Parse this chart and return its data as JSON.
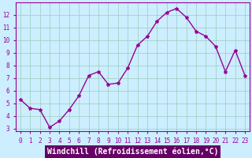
{
  "x": [
    0,
    1,
    2,
    3,
    4,
    5,
    6,
    7,
    8,
    9,
    10,
    11,
    12,
    13,
    14,
    15,
    16,
    17,
    18,
    19,
    20,
    21,
    22,
    23
  ],
  "y": [
    5.3,
    4.6,
    4.5,
    3.1,
    3.6,
    4.5,
    5.6,
    7.2,
    7.5,
    6.5,
    6.6,
    7.8,
    9.6,
    10.3,
    11.5,
    12.2,
    12.5,
    11.8,
    10.7,
    10.3,
    9.5,
    7.5,
    9.2,
    7.2
  ],
  "line_color": "#990099",
  "marker": "*",
  "marker_size": 3,
  "background_color": "#cceeff",
  "grid_color": "#99ccbb",
  "xlabel": "Windchill (Refroidissement éolien,°C)",
  "xlabel_fontsize": 7,
  "ylim": [
    2.8,
    13
  ],
  "xlim": [
    -0.5,
    23.5
  ],
  "yticks": [
    3,
    4,
    5,
    6,
    7,
    8,
    9,
    10,
    11,
    12
  ],
  "xticks": [
    0,
    1,
    2,
    3,
    4,
    5,
    6,
    7,
    8,
    9,
    10,
    11,
    12,
    13,
    14,
    15,
    16,
    17,
    18,
    19,
    20,
    21,
    22,
    23
  ],
  "tick_fontsize": 5.5,
  "line_width": 1.0,
  "label_bg_color": "#660066",
  "label_text_color": "#ffffff",
  "tick_color": "#990099"
}
